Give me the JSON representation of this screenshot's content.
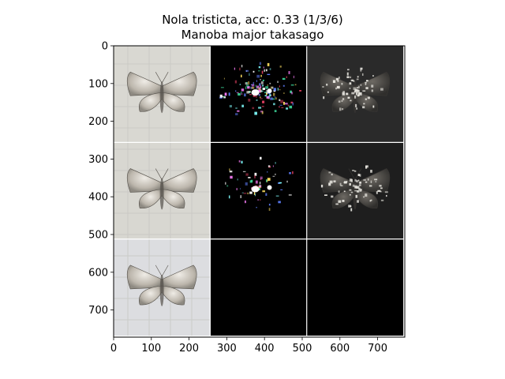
{
  "chart_data": {
    "type": "image-grid",
    "title": "Nola tristicta, acc: 0.33 (1/3/6)",
    "subtitle": "Manoba major takasago",
    "grid": {
      "rows": 3,
      "cols": 3,
      "cell_size": 256,
      "separator_color": "#ffffff"
    },
    "xlim": [
      0,
      772
    ],
    "ylim": [
      772,
      0
    ],
    "x_ticks": [
      0,
      100,
      200,
      300,
      400,
      500,
      600,
      700
    ],
    "y_ticks": [
      0,
      100,
      200,
      300,
      400,
      500,
      600,
      700
    ],
    "cells": [
      {
        "row": 0,
        "col": 0,
        "content": "moth-photo",
        "background": "#d9d8d2"
      },
      {
        "row": 0,
        "col": 1,
        "content": "saliency-map",
        "background": "#000000"
      },
      {
        "row": 0,
        "col": 2,
        "content": "masked-photo",
        "background": "#2a2a2a"
      },
      {
        "row": 1,
        "col": 0,
        "content": "moth-photo",
        "background": "#d8d7d1"
      },
      {
        "row": 1,
        "col": 1,
        "content": "saliency-map",
        "background": "#000000"
      },
      {
        "row": 1,
        "col": 2,
        "content": "masked-photo",
        "background": "#1e1e1e"
      },
      {
        "row": 2,
        "col": 0,
        "content": "moth-photo",
        "background": "#dcdde0"
      },
      {
        "row": 2,
        "col": 1,
        "content": "empty",
        "background": "#000000"
      },
      {
        "row": 2,
        "col": 2,
        "content": "empty",
        "background": "#000000"
      }
    ]
  }
}
